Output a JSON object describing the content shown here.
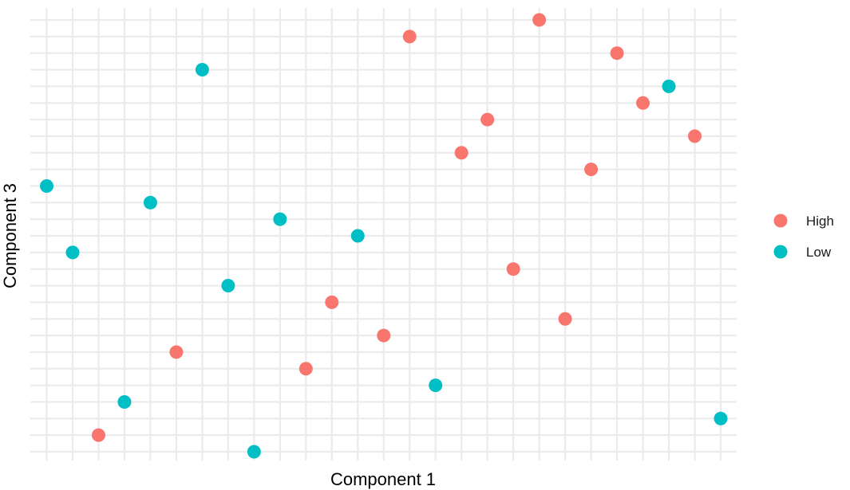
{
  "chart_data": {
    "type": "scatter",
    "xlabel": "Component 1",
    "ylabel": "Component 3",
    "xlim": [
      1,
      27
    ],
    "ylim": [
      1,
      27
    ],
    "grid": true,
    "tick_labels_shown": false,
    "legend_position": "right",
    "series": [
      {
        "name": "High",
        "color": "#F8766D",
        "points": [
          {
            "x": 3,
            "y": 2
          },
          {
            "x": 6,
            "y": 7
          },
          {
            "x": 11,
            "y": 6
          },
          {
            "x": 12,
            "y": 10
          },
          {
            "x": 14,
            "y": 8
          },
          {
            "x": 15,
            "y": 26
          },
          {
            "x": 17,
            "y": 19
          },
          {
            "x": 18,
            "y": 21
          },
          {
            "x": 19,
            "y": 12
          },
          {
            "x": 20,
            "y": 27
          },
          {
            "x": 21,
            "y": 9
          },
          {
            "x": 22,
            "y": 18
          },
          {
            "x": 23,
            "y": 25
          },
          {
            "x": 24,
            "y": 22
          },
          {
            "x": 26,
            "y": 20
          }
        ]
      },
      {
        "name": "Low",
        "color": "#00BFC4",
        "points": [
          {
            "x": 1,
            "y": 17
          },
          {
            "x": 2,
            "y": 13
          },
          {
            "x": 4,
            "y": 4
          },
          {
            "x": 5,
            "y": 16
          },
          {
            "x": 7,
            "y": 24
          },
          {
            "x": 8,
            "y": 11
          },
          {
            "x": 9,
            "y": 1
          },
          {
            "x": 10,
            "y": 15
          },
          {
            "x": 13,
            "y": 14
          },
          {
            "x": 16,
            "y": 5
          },
          {
            "x": 25,
            "y": 23
          },
          {
            "x": 27,
            "y": 3
          }
        ]
      }
    ]
  }
}
